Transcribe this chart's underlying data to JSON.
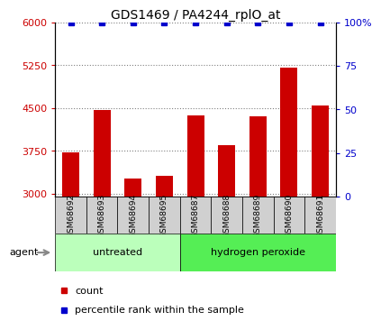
{
  "title": "GDS1469 / PA4244_rplO_at",
  "categories": [
    "GSM68692",
    "GSM68693",
    "GSM68694",
    "GSM68695",
    "GSM68687",
    "GSM68688",
    "GSM68689",
    "GSM68690",
    "GSM68691"
  ],
  "bar_values": [
    3720,
    4460,
    3270,
    3310,
    4370,
    3850,
    4350,
    5200,
    4540
  ],
  "percentile_values": [
    100,
    100,
    100,
    100,
    100,
    100,
    100,
    100,
    100
  ],
  "bar_color": "#cc0000",
  "percentile_color": "#0000cc",
  "ylim_left": [
    2950,
    6000
  ],
  "ylim_right": [
    0,
    100
  ],
  "yticks_left": [
    3000,
    3750,
    4500,
    5250,
    6000
  ],
  "yticks_right": [
    0,
    25,
    50,
    75,
    100
  ],
  "ytick_labels_left": [
    "3000",
    "3750",
    "4500",
    "5250",
    "6000"
  ],
  "ytick_labels_right": [
    "0",
    "25",
    "50",
    "75",
    "100%"
  ],
  "groups": [
    {
      "label": "untreated",
      "indices": [
        0,
        1,
        2,
        3
      ],
      "color": "#bbffbb"
    },
    {
      "label": "hydrogen peroxide",
      "indices": [
        4,
        5,
        6,
        7,
        8
      ],
      "color": "#55ee55"
    }
  ],
  "agent_label": "agent",
  "legend_count_label": "count",
  "legend_percentile_label": "percentile rank within the sample",
  "bar_width": 0.55,
  "background_color": "#ffffff",
  "tick_label_color_left": "#cc0000",
  "tick_label_color_right": "#0000cc",
  "sample_box_color": "#d0d0d0",
  "title_fontsize": 10
}
